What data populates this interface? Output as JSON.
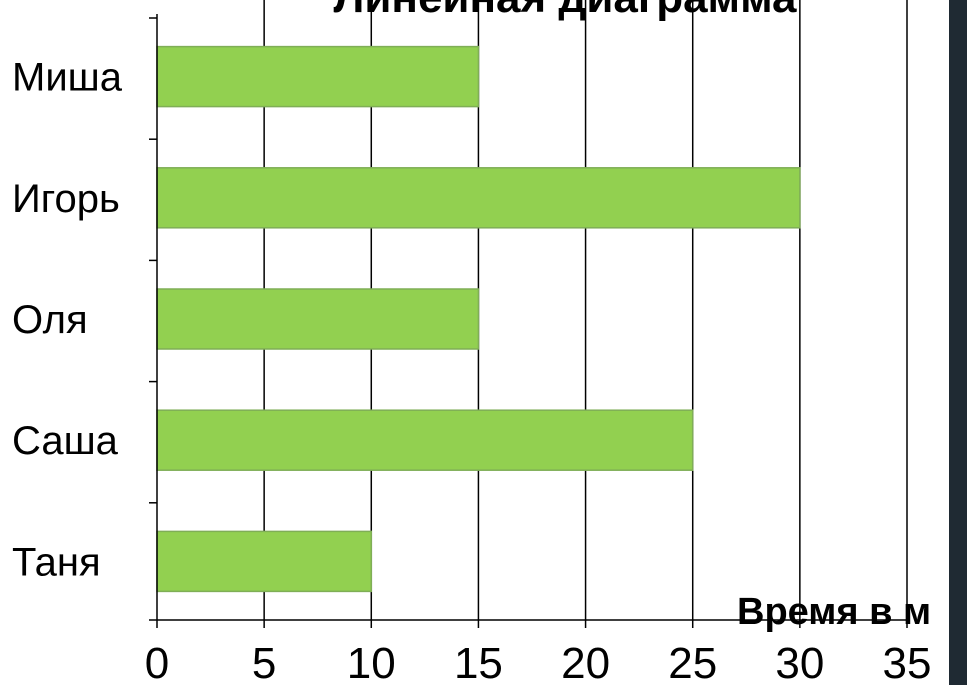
{
  "chart_data": {
    "type": "bar",
    "orientation": "horizontal",
    "title": "Линейная диаграмма",
    "xlabel": "Время в м",
    "ylabel": "",
    "categories": [
      "Миша",
      "Игорь",
      "Оля",
      "Саша",
      "Таня"
    ],
    "values": [
      15,
      30,
      15,
      25,
      10
    ],
    "xlim": [
      0,
      35
    ],
    "xticks": [
      "0",
      "5",
      "10",
      "15",
      "20",
      "25",
      "30",
      "35"
    ],
    "grid": true,
    "legend": "none",
    "bar_color": "#92d050"
  },
  "frame": {
    "right_edge_color": "#1f2a33"
  }
}
